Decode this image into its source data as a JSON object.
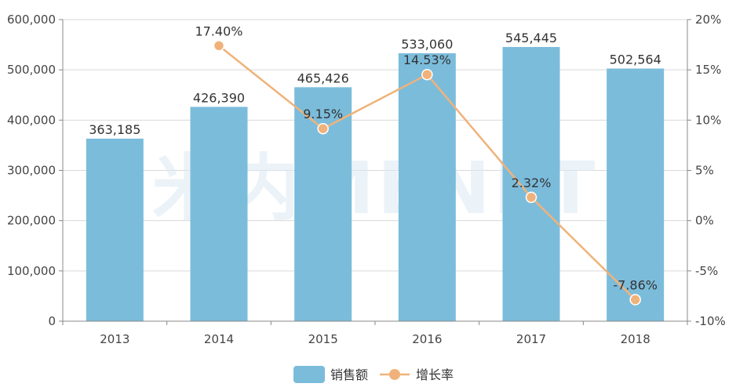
{
  "chart_data": {
    "type": "bar",
    "categories": [
      "2013",
      "2014",
      "2015",
      "2016",
      "2017",
      "2018"
    ],
    "series": [
      {
        "name": "销售额",
        "type": "bar",
        "axis": "left",
        "color": "#7bbcdb",
        "values": [
          363185,
          426390,
          465426,
          533060,
          545445,
          502564
        ],
        "labels": [
          "363,185",
          "426,390",
          "465,426",
          "533,060",
          "545,445",
          "502,564"
        ]
      },
      {
        "name": "增长率",
        "type": "line",
        "axis": "right",
        "color": "#f0b27a",
        "values": [
          null,
          17.4,
          9.15,
          14.53,
          2.32,
          -7.86
        ],
        "labels": [
          "",
          "17.40%",
          "9.15%",
          "14.53%",
          "2.32%",
          "-7.86%"
        ]
      }
    ],
    "left_axis": {
      "ylim": [
        0,
        600000
      ],
      "ticks": [
        0,
        100000,
        200000,
        300000,
        400000,
        500000,
        600000
      ],
      "tick_labels": [
        "0",
        "100,000",
        "200,000",
        "300,000",
        "400,000",
        "500,000",
        "600,000"
      ]
    },
    "right_axis": {
      "ylim": [
        -10,
        20
      ],
      "ticks": [
        -10,
        -5,
        0,
        5,
        10,
        15,
        20
      ],
      "tick_labels": [
        "-10%",
        "-5%",
        "0%",
        "5%",
        "10%",
        "15%",
        "20%"
      ]
    },
    "grid": true,
    "legend_position": "bottom-center",
    "watermark": "米内MENET"
  }
}
